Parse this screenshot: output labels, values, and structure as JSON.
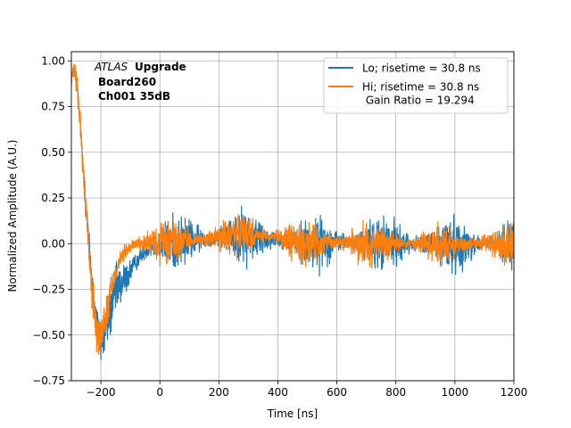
{
  "chart_data": {
    "type": "line",
    "xlabel": "Time [ns]",
    "ylabel": "Normalized Amplitude (A.U.)",
    "xlim": [
      -300,
      1200
    ],
    "ylim": [
      -0.75,
      1.05
    ],
    "xticks": [
      -200,
      0,
      200,
      400,
      600,
      800,
      1000,
      1200
    ],
    "xtick_labels": [
      "−200",
      "0",
      "200",
      "400",
      "600",
      "800",
      "1000",
      "1200"
    ],
    "yticks": [
      -0.75,
      -0.5,
      -0.25,
      0.0,
      0.25,
      0.5,
      0.75,
      1.0
    ],
    "ytick_labels": [
      "−0.75",
      "−0.50",
      "−0.25",
      "0.00",
      "0.25",
      "0.50",
      "0.75",
      "1.00"
    ],
    "grid": true,
    "legend_position": "top-right",
    "annotation": {
      "experiment": "ATLAS",
      "tag": "Upgrade",
      "line2": "Board260",
      "line3": "Ch001 35dB"
    },
    "series": [
      {
        "name": "Lo; risetime = 30.8 ns",
        "color": "#1f77b4",
        "noise": 0.055,
        "shape_x": [
          -300,
          -290,
          -280,
          -270,
          -260,
          -250,
          -240,
          -230,
          -220,
          -210,
          -200,
          -190,
          -180,
          -170,
          -160,
          -150,
          -140,
          -120,
          -100,
          -80,
          -60,
          -40,
          0,
          100,
          200,
          300,
          400,
          500,
          600,
          700,
          800,
          900,
          1000,
          1100,
          1200
        ],
        "shape_y": [
          0.9,
          0.95,
          0.85,
          0.65,
          0.42,
          0.2,
          0.0,
          -0.2,
          -0.38,
          -0.48,
          -0.53,
          -0.5,
          -0.44,
          -0.38,
          -0.32,
          -0.27,
          -0.24,
          -0.2,
          -0.15,
          -0.1,
          -0.06,
          -0.03,
          0.0,
          0.02,
          0.03,
          0.04,
          0.02,
          0.0,
          0.01,
          0.0,
          0.0,
          0.0,
          -0.01,
          0.0,
          0.0
        ]
      },
      {
        "name": "Hi; risetime = 30.8 ns\n Gain Ratio = 19.294",
        "color": "#ff7f0e",
        "noise": 0.045,
        "shape_x": [
          -300,
          -290,
          -280,
          -270,
          -260,
          -250,
          -240,
          -230,
          -220,
          -210,
          -200,
          -190,
          -180,
          -170,
          -160,
          -150,
          -140,
          -120,
          -100,
          -80,
          -60,
          -40,
          0,
          100,
          200,
          300,
          400,
          500,
          600,
          700,
          800,
          900,
          1000,
          1100,
          1200
        ],
        "shape_y": [
          0.9,
          0.95,
          0.85,
          0.65,
          0.42,
          0.18,
          -0.05,
          -0.25,
          -0.4,
          -0.47,
          -0.5,
          -0.45,
          -0.37,
          -0.29,
          -0.21,
          -0.15,
          -0.1,
          -0.05,
          -0.02,
          0.0,
          0.0,
          0.0,
          0.0,
          0.02,
          0.03,
          0.05,
          0.03,
          0.0,
          0.01,
          0.0,
          0.0,
          0.0,
          0.0,
          0.0,
          0.0
        ]
      }
    ]
  }
}
